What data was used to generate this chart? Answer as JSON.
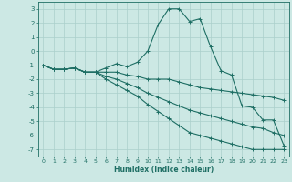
{
  "xlabel": "Humidex (Indice chaleur)",
  "bg_color": "#cce8e4",
  "grid_color": "#aacfcb",
  "line_color": "#1e6e64",
  "xlim": [
    -0.5,
    23.5
  ],
  "ylim": [
    -7.5,
    3.5
  ],
  "yticks": [
    3,
    2,
    1,
    0,
    -1,
    -2,
    -3,
    -4,
    -5,
    -6,
    -7
  ],
  "xticks": [
    0,
    1,
    2,
    3,
    4,
    5,
    6,
    7,
    8,
    9,
    10,
    11,
    12,
    13,
    14,
    15,
    16,
    17,
    18,
    19,
    20,
    21,
    22,
    23
  ],
  "x": [
    0,
    1,
    2,
    3,
    4,
    5,
    6,
    7,
    8,
    9,
    10,
    11,
    12,
    13,
    14,
    15,
    16,
    17,
    18,
    19,
    20,
    21,
    22,
    23
  ],
  "series": [
    [
      -1,
      -1.3,
      -1.3,
      -1.2,
      -1.5,
      -1.5,
      -1.2,
      -0.9,
      -1.1,
      -0.8,
      0.0,
      1.9,
      3.0,
      3.0,
      2.1,
      2.3,
      0.3,
      -1.4,
      -1.7,
      -3.9,
      -4.0,
      -4.9,
      -4.9,
      -6.7
    ],
    [
      -1,
      -1.3,
      -1.3,
      -1.2,
      -1.5,
      -1.5,
      -1.5,
      -1.5,
      -1.7,
      -1.8,
      -2.0,
      -2.0,
      -2.0,
      -2.2,
      -2.4,
      -2.6,
      -2.7,
      -2.8,
      -2.9,
      -3.0,
      -3.1,
      -3.2,
      -3.3,
      -3.5
    ],
    [
      -1,
      -1.3,
      -1.3,
      -1.2,
      -1.5,
      -1.5,
      -1.8,
      -2.0,
      -2.3,
      -2.6,
      -3.0,
      -3.3,
      -3.6,
      -3.9,
      -4.2,
      -4.4,
      -4.6,
      -4.8,
      -5.0,
      -5.2,
      -5.4,
      -5.5,
      -5.8,
      -6.0
    ],
    [
      -1,
      -1.3,
      -1.3,
      -1.2,
      -1.5,
      -1.5,
      -2.0,
      -2.4,
      -2.8,
      -3.2,
      -3.8,
      -4.3,
      -4.8,
      -5.3,
      -5.8,
      -6.0,
      -6.2,
      -6.4,
      -6.6,
      -6.8,
      -7.0,
      -7.0,
      -7.0,
      -7.0
    ]
  ]
}
